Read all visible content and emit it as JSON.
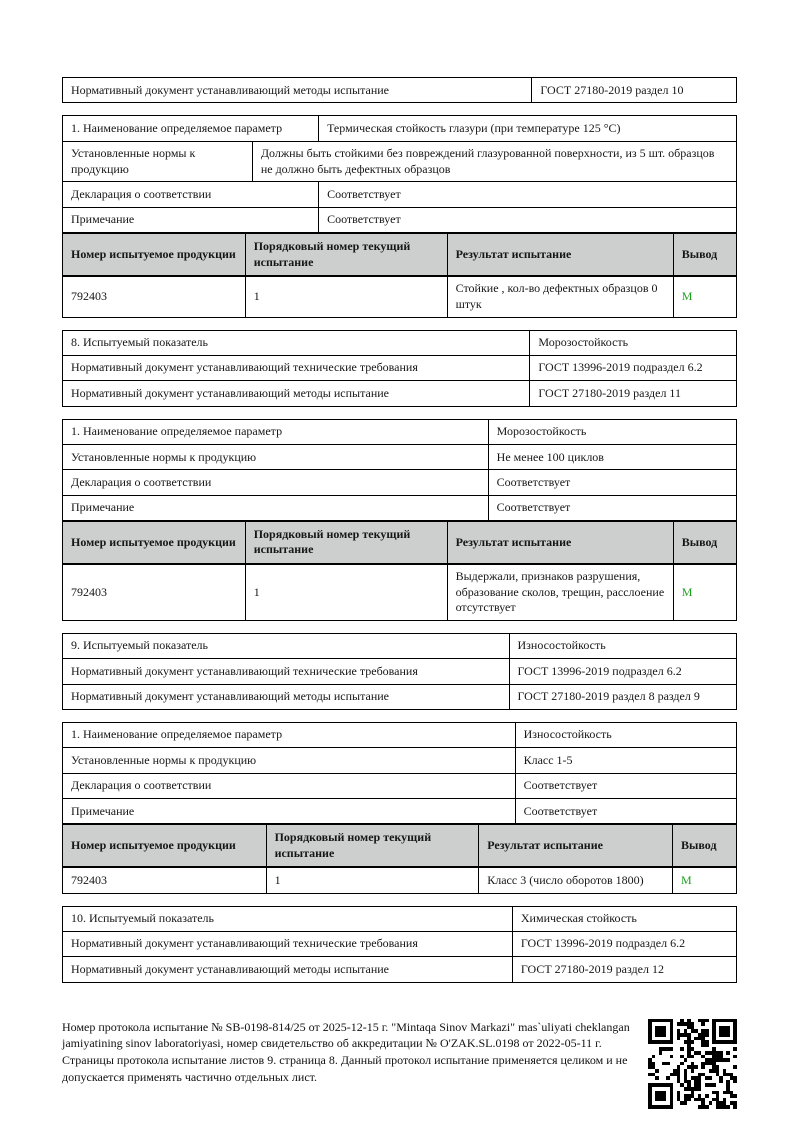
{
  "colors": {
    "header_row_bg": "#cccfcd",
    "verdict_green": "#1e9e1e",
    "border_black": "#000000"
  },
  "blocks": [
    {
      "kind": "kv",
      "rows": [
        [
          "Нормативный документ устанавливающий методы испытание",
          "ГОСТ 27180-2019 раздел 10"
        ]
      ]
    },
    {
      "kind": "param",
      "rows": [
        [
          "1. Наименование определяемое параметр",
          "Термическая стойкость глазури (при температуре 125 °C)"
        ],
        [
          "Установленные нормы к продукцию",
          "Должны быть стойкими без повреждений глазурованной поверхности, из 5 шт. образцов не должно быть дефектных образцов"
        ],
        [
          "Декларация о соответствии",
          "Соответствует"
        ],
        [
          "Примечание",
          "Соответствует"
        ]
      ],
      "results": {
        "headers": [
          "Номер испытуемое продукции",
          "Порядковый номер текущий испытание",
          "Результат испытание",
          "Вывод"
        ],
        "row": [
          "792403",
          "1",
          "Стойкие , кол-во дефектных образцов 0 штук",
          "М"
        ]
      }
    },
    {
      "kind": "kv",
      "rows": [
        [
          "8. Испытуемый показатель",
          "Морозостойкость"
        ],
        [
          "Нормативный документ устанавливающий технические требования",
          "ГОСТ 13996-2019 подраздел 6.2"
        ],
        [
          "Нормативный документ устанавливающий методы испытание",
          "ГОСТ 27180-2019 раздел 11"
        ]
      ]
    },
    {
      "kind": "param",
      "rows": [
        [
          "1. Наименование определяемое параметр",
          "Морозостойкость"
        ],
        [
          "Установленные нормы к продукцию",
          "Не менее 100 циклов"
        ],
        [
          "Декларация о соответствии",
          "Соответствует"
        ],
        [
          "Примечание",
          "Соответствует"
        ]
      ],
      "results": {
        "headers": [
          "Номер испытуемое продукции",
          "Порядковый номер текущий испытание",
          "Результат испытание",
          "Вывод"
        ],
        "row": [
          "792403",
          "1",
          "Выдержали, признаков разрушения, образование сколов, трещин, расслоение отсутствует",
          "М"
        ]
      }
    },
    {
      "kind": "kv",
      "rows": [
        [
          "9. Испытуемый показатель",
          "Износостойкость"
        ],
        [
          "Нормативный документ устанавливающий технические требования",
          "ГОСТ 13996-2019 подраздел 6.2"
        ],
        [
          "Нормативный документ устанавливающий методы испытание",
          "ГОСТ 27180-2019 раздел 8 раздел 9"
        ]
      ]
    },
    {
      "kind": "param",
      "rows": [
        [
          "1. Наименование определяемое параметр",
          "Износостойкость"
        ],
        [
          "Установленные нормы к продукцию",
          "Класс 1-5"
        ],
        [
          "Декларация о соответствии",
          "Соответствует"
        ],
        [
          "Примечание",
          "Соответствует"
        ]
      ],
      "results": {
        "headers": [
          "Номер испытуемое продукции",
          "Порядковый номер текущий испытание",
          "Результат испытание",
          "Вывод"
        ],
        "row": [
          "792403",
          "1",
          "Класс 3 (число оборотов 1800)",
          "М"
        ]
      }
    },
    {
      "kind": "kv",
      "rows": [
        [
          "10. Испытуемый показатель",
          "Химическая стойкость"
        ],
        [
          "Нормативный документ устанавливающий технические требования",
          "ГОСТ 13996-2019 подраздел 6.2"
        ],
        [
          "Нормативный документ устанавливающий методы испытание",
          "ГОСТ 27180-2019 раздел 12"
        ]
      ]
    }
  ],
  "footer": {
    "text": "Номер протокола испытание № SB-0198-814/25 от 2025-12-15 г. \"Mintaqa Sinov Markazi\" mas`uliyati cheklangan jamiyatining sinov laboratoriyasi, номер свидетельство об аккредитации № O'ZAK.SL.0198 от 2022-05-11 г. Страницы протокола испытание листов 9. страница 8. Данный протокол испытание применяется целиком и не допускается применять частично отдельных лист."
  }
}
